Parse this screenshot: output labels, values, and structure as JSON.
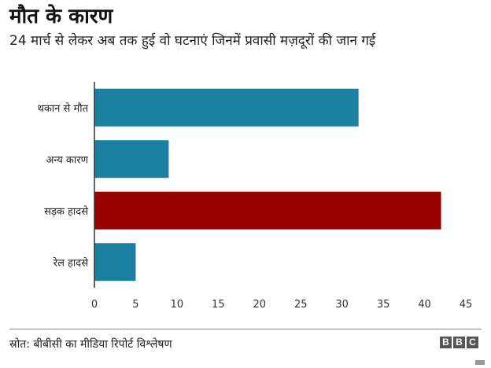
{
  "header": {
    "title": "मौत के कारण",
    "subtitle": "24 मार्च से लेकर अब तक हुई वो घटनाएं जिनमें प्रवासी मज़दूरों की जान गई"
  },
  "footer": {
    "source": "स्रोत: बीबीसी का मीडिया रिपोर्ट विश्लेषण",
    "logo_letters": [
      "B",
      "B",
      "C"
    ]
  },
  "chart_data": {
    "type": "bar",
    "orientation": "horizontal",
    "categories": [
      "थकान से मौत",
      "अन्य कारण",
      "सड़क हादसे",
      "रेल हादसे"
    ],
    "values": [
      32,
      9,
      42,
      5
    ],
    "xlim": [
      0,
      45
    ],
    "xticks": [
      0,
      5,
      10,
      15,
      20,
      25,
      30,
      35,
      40,
      45
    ],
    "grid": false,
    "colors": [
      "#1a7fa1",
      "#1a7fa1",
      "#990000",
      "#1a7fa1"
    ],
    "axis_color": "#333333"
  }
}
